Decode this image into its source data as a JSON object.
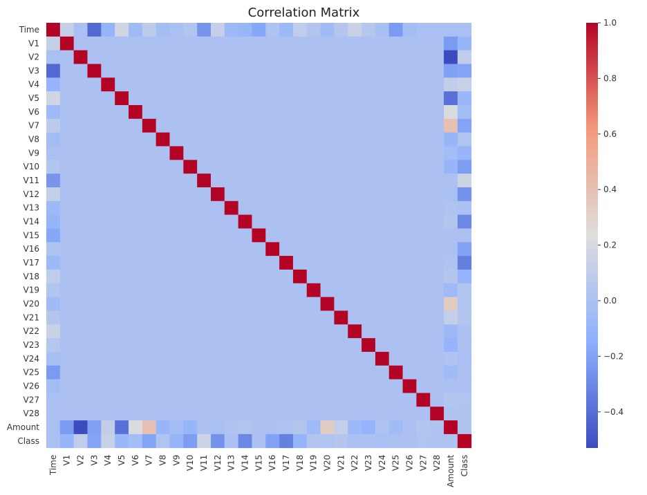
{
  "chart_data": {
    "type": "heatmap",
    "title": "Correlation Matrix",
    "labels": [
      "Time",
      "V1",
      "V2",
      "V3",
      "V4",
      "V5",
      "V6",
      "V7",
      "V8",
      "V9",
      "V10",
      "V11",
      "V12",
      "V13",
      "V14",
      "V15",
      "V16",
      "V17",
      "V18",
      "V19",
      "V20",
      "V21",
      "V22",
      "V23",
      "V24",
      "V25",
      "V26",
      "V27",
      "V28",
      "Amount",
      "Class"
    ],
    "colormap": "coolwarm",
    "vmin": -0.53,
    "vmax": 1.0,
    "colorbar_ticks": [
      "1.0",
      "0.8",
      "0.6",
      "0.4",
      "0.2",
      "0.0",
      "−0.2",
      "−0.4"
    ],
    "time_corr": [
      1.0,
      0.12,
      -0.01,
      -0.42,
      -0.11,
      0.17,
      -0.06,
      0.08,
      -0.04,
      -0.01,
      0.03,
      -0.25,
      0.12,
      -0.07,
      -0.1,
      -0.18,
      0.01,
      -0.07,
      0.09,
      0.03,
      -0.05,
      0.04,
      0.14,
      0.05,
      -0.02,
      -0.23,
      -0.04,
      -0.01,
      -0.01,
      -0.01,
      -0.01
    ],
    "amount_corr": [
      -0.01,
      -0.23,
      -0.53,
      -0.21,
      0.1,
      -0.39,
      0.22,
      0.4,
      -0.1,
      -0.04,
      -0.1,
      0.0,
      -0.01,
      0.01,
      0.03,
      -0.0,
      -0.0,
      0.01,
      0.04,
      -0.06,
      0.34,
      0.11,
      -0.07,
      -0.11,
      0.01,
      -0.05,
      -0.0,
      0.03,
      0.01,
      1.0,
      0.01
    ],
    "class_corr": [
      -0.01,
      -0.1,
      0.09,
      -0.19,
      0.13,
      -0.09,
      -0.04,
      -0.19,
      0.02,
      -0.1,
      -0.22,
      0.15,
      -0.26,
      -0.0,
      -0.3,
      -0.0,
      -0.2,
      -0.33,
      -0.11,
      0.03,
      0.02,
      0.04,
      0.0,
      -0.0,
      -0.01,
      0.0,
      0.0,
      0.02,
      0.01,
      0.01,
      1.0
    ]
  }
}
